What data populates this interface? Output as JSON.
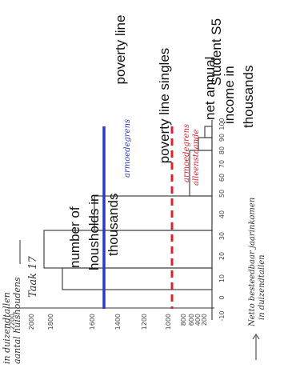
{
  "header": {
    "title": "Student S5",
    "task": "Taak 17"
  },
  "labels": {
    "poverty_line": "poverty line",
    "poverty_line_singles": "poverty line singles",
    "income_axis": [
      "net annual",
      "income in",
      "thousands"
    ],
    "households_axis": [
      "number of",
      "housholds in",
      "thousands"
    ]
  },
  "handwritten": {
    "poverty_line": "armoedegrens",
    "poverty_line_singles": [
      "armoedegrens",
      "alleenstaande"
    ],
    "households_axis": [
      "aantal huishoudens",
      "in duizendtallen"
    ],
    "income_axis": [
      "Netto besteedbaar jaarinkomen",
      "in duizendtallen"
    ]
  },
  "household_ticks": [
    "2200",
    "2000",
    "1800",
    "1600",
    "1400",
    "1200",
    "1000",
    "800",
    "600",
    "400",
    "200"
  ],
  "income_ticks": [
    "-10",
    "0",
    "10",
    "20",
    "30",
    "40",
    "50",
    "60",
    "70",
    "80",
    "90",
    "100"
  ]
}
